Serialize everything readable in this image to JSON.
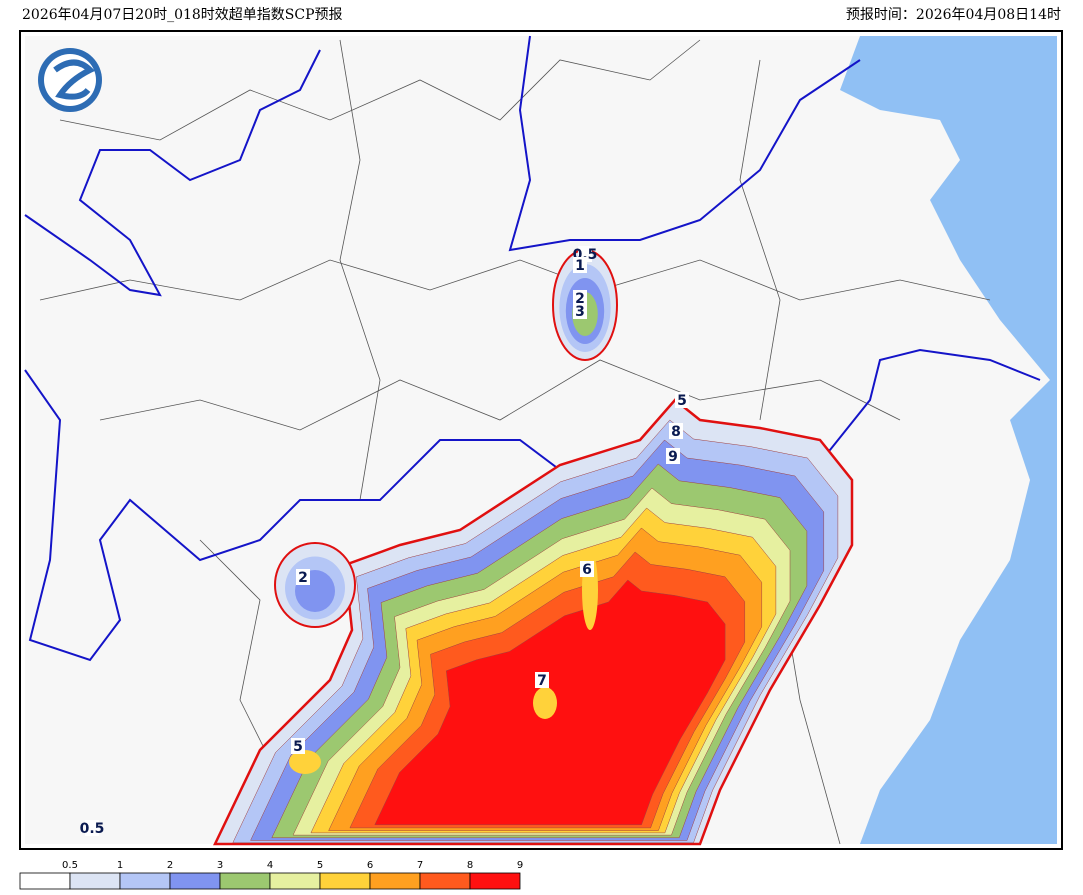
{
  "header": {
    "title": "2026年04月07日20时_018时效超单指数SCP预报",
    "valid_time": "预报时间：2026年04月08日14时"
  },
  "contour_labels": [
    "0.5",
    "1",
    "2",
    "3",
    "5",
    "8",
    "9",
    "6",
    "7",
    "2",
    "5",
    "0.5"
  ],
  "legend": {
    "labels": [
      "0.5",
      "1",
      "2",
      "3",
      "4",
      "5",
      "6",
      "7",
      "8",
      "9"
    ],
    "colors": [
      "#ffffff",
      "#dce4f4",
      "#b4c6f6",
      "#8094f0",
      "#9cc870",
      "#e6f0a0",
      "#ffd23a",
      "#ffa020",
      "#ff5a1e",
      "#ff1010"
    ]
  }
}
